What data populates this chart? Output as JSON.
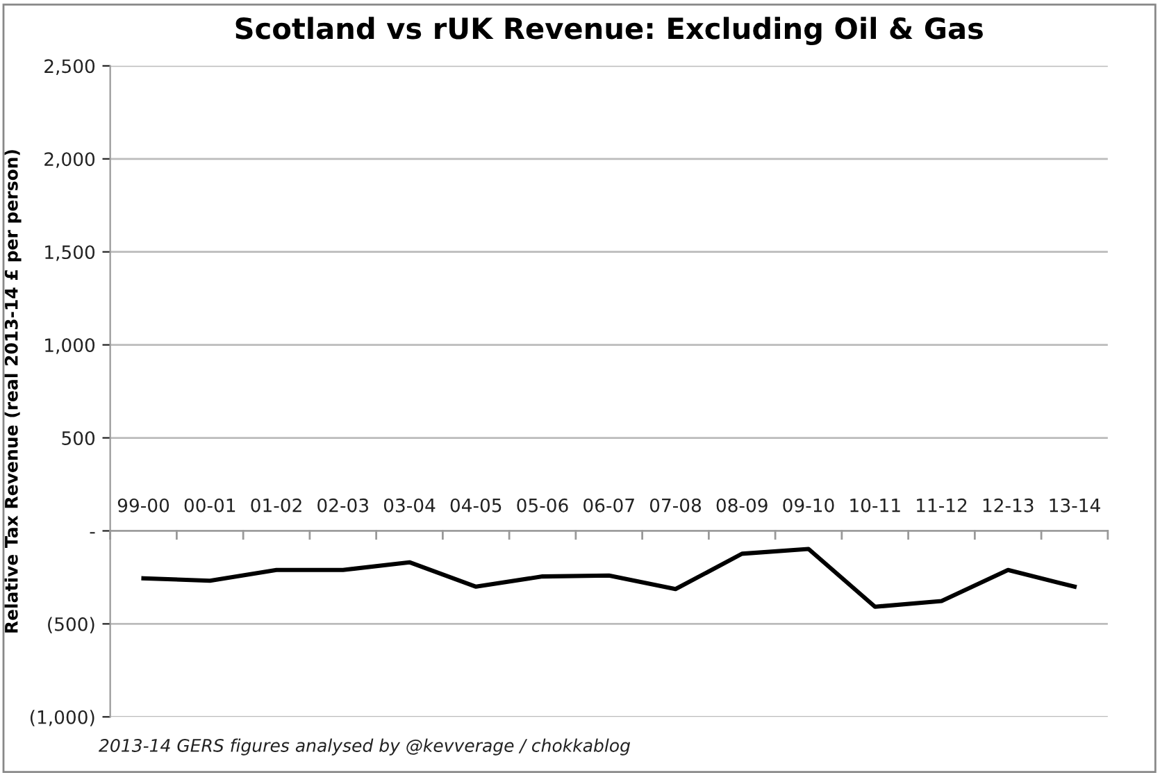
{
  "chart_data": {
    "type": "line",
    "title": "Scotland vs rUK Revenue: Excluding Oil & Gas",
    "ylabel": "Relative Tax Revenue (real 2013-14 £ per person)",
    "categories": [
      "99-00",
      "00-01",
      "01-02",
      "02-03",
      "03-04",
      "04-05",
      "05-06",
      "06-07",
      "07-08",
      "08-09",
      "09-10",
      "10-11",
      "11-12",
      "12-13",
      "13-14"
    ],
    "series": [
      {
        "color": "#000000",
        "values": [
          -255,
          -268,
          -210,
          -210,
          -169,
          -300,
          -245,
          -240,
          -313,
          -123,
          -97,
          -408,
          -377,
          -210,
          -300
        ]
      }
    ],
    "ylim": [
      -1000,
      2500
    ],
    "yticks": [
      {
        "value": -1000,
        "label": "(1,000)"
      },
      {
        "value": -500,
        "label": "(500)"
      },
      {
        "value": 0,
        "label": "-"
      },
      {
        "value": 500,
        "label": "500"
      },
      {
        "value": 1000,
        "label": "1,000"
      },
      {
        "value": 1500,
        "label": "1,500"
      },
      {
        "value": 2000,
        "label": "2,000"
      },
      {
        "value": 2500,
        "label": "2,500"
      }
    ],
    "grid": "y",
    "line_style": "solid",
    "marker": "none",
    "annotations": [
      "2013-14 GERS figures analysed by @kevverage / chokkablog"
    ]
  }
}
